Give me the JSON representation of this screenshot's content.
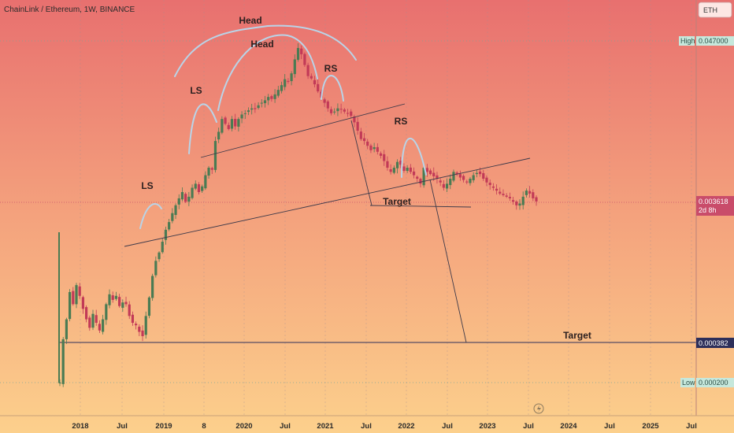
{
  "header": {
    "title": "ChainLink / Ethereum, 1W, BINANCE",
    "symbol_badge": "ETH"
  },
  "price_tags": {
    "high": {
      "label": "High",
      "value": "0.047000"
    },
    "current": {
      "value": "0.003618",
      "countdown": "2d 8h"
    },
    "target": {
      "value": "0.000382"
    },
    "low": {
      "label": "Low",
      "value": "0.000200"
    }
  },
  "annotations": {
    "head_outer": "Head",
    "head_inner": "Head",
    "ls_1": "LS",
    "ls_2": "LS",
    "rs_1": "RS",
    "rs_2": "RS",
    "target_1": "Target",
    "target_2": "Target"
  },
  "colors": {
    "bg_top": "#e8706f",
    "bg_bottom": "#fbc98a",
    "up_candle": "#4a7b53",
    "down_candle": "#c23a57",
    "trend_line": "#3d3a4a",
    "arc": "#b9d4e8",
    "current_tag": "#c94c6a",
    "target_tag": "#2d2f5a",
    "hl_tag": "#c6e8dc"
  },
  "footer": {
    "flash_icon": "lightning-icon"
  },
  "chart_data": {
    "type": "candlestick",
    "title": "ChainLink / Ethereum, 1W, BINANCE",
    "x_ticks": [
      "2018",
      "Jul",
      "2019",
      "8",
      "2020",
      "Jul",
      "2021",
      "Jul",
      "2022",
      "Jul",
      "2023",
      "Jul",
      "2024",
      "Jul",
      "2025",
      "Jul"
    ],
    "y_scale": "log",
    "high": 0.047,
    "low": 0.0002,
    "last": 0.003618,
    "target_level": 0.000382,
    "series": [
      {
        "values": [
          0.0002,
          0.0004,
          0.00055,
          0.00085,
          0.0007,
          0.00095,
          0.0008,
          0.00065,
          0.00055,
          0.00048,
          0.0006,
          0.00052,
          0.00046,
          0.00055,
          0.0007,
          0.00082,
          0.00075,
          0.0008,
          0.00068,
          0.00072,
          0.0007,
          0.00058,
          0.00052,
          0.0005,
          0.00045,
          0.00042,
          0.00058,
          0.00078,
          0.0011,
          0.0014,
          0.0016,
          0.0019,
          0.0023,
          0.0026,
          0.003,
          0.0034,
          0.0038,
          0.0042,
          0.0036,
          0.0039,
          0.0045,
          0.0048,
          0.0042,
          0.0046,
          0.0055,
          0.0062,
          0.006,
          0.0095,
          0.011,
          0.0135,
          0.0125,
          0.0115,
          0.0135,
          0.012,
          0.0135,
          0.0145,
          0.0148,
          0.0155,
          0.016,
          0.0158,
          0.0168,
          0.0175,
          0.0182,
          0.0192,
          0.0186,
          0.02,
          0.0215,
          0.0232,
          0.0255,
          0.0245,
          0.028,
          0.035,
          0.042,
          0.038,
          0.032,
          0.0268,
          0.0258,
          0.0235,
          0.021,
          0.019,
          0.0175,
          0.016,
          0.0148,
          0.0152,
          0.016,
          0.0158,
          0.0152,
          0.0148,
          0.0142,
          0.0128,
          0.0112,
          0.0098,
          0.0095,
          0.0088,
          0.0082,
          0.0086,
          0.008,
          0.0075,
          0.0069,
          0.0062,
          0.0058,
          0.0062,
          0.0068,
          0.0065,
          0.0059,
          0.0062,
          0.0058,
          0.0055,
          0.0052,
          0.0048,
          0.0062,
          0.0058,
          0.0056,
          0.0054,
          0.0052,
          0.0049,
          0.0045,
          0.0048,
          0.0052,
          0.0058,
          0.0056,
          0.0053,
          0.0051,
          0.0049,
          0.0052,
          0.0055,
          0.0057,
          0.0056,
          0.0052,
          0.0049,
          0.0047,
          0.0045,
          0.0043,
          0.0041,
          0.004,
          0.0039,
          0.0038,
          0.0036,
          0.0034,
          0.0035,
          0.0039,
          0.0043,
          0.0041,
          0.0038,
          0.003618
        ]
      }
    ]
  }
}
